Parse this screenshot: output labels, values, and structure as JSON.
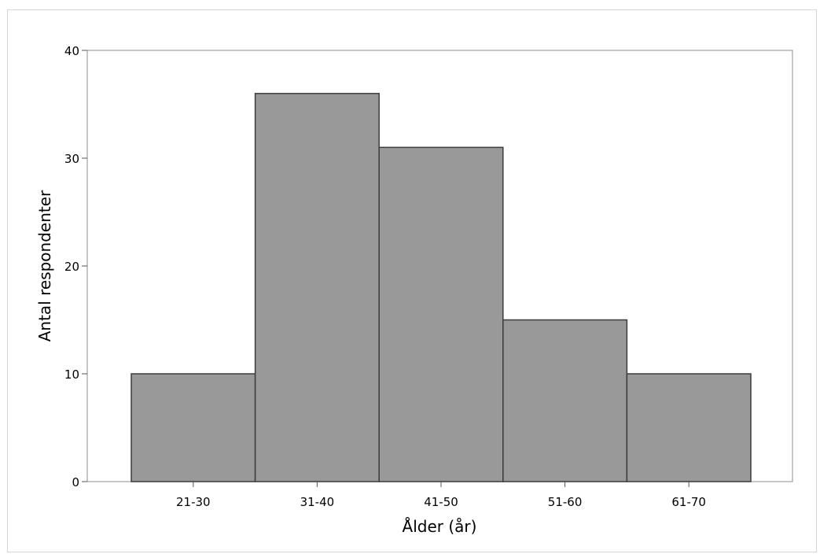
{
  "chart_data": {
    "type": "bar",
    "categories": [
      "21-30",
      "31-40",
      "41-50",
      "51-60",
      "61-70"
    ],
    "values": [
      10,
      36,
      31,
      15,
      10
    ],
    "title": "",
    "xlabel": "Ålder (år)",
    "ylabel": "Antal respondenter",
    "ylim": [
      0,
      40
    ],
    "yticks": [
      0,
      10,
      20,
      30,
      40
    ],
    "grid": false,
    "bar_color": "#999999",
    "bar_edge_color": "#3c3c3c"
  }
}
